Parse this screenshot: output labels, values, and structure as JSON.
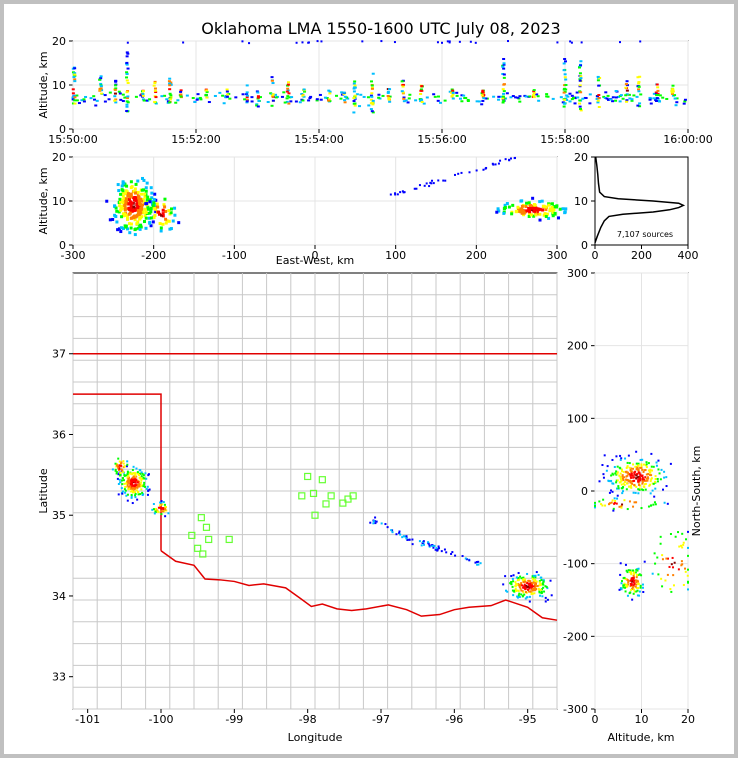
{
  "chart_data": {
    "title": "Oklahoma LMA 1550-1600 UTC July 08, 2023",
    "colors": [
      "#0000ff",
      "#00bfff",
      "#00ff00",
      "#ffff00",
      "#ff8000",
      "#ff0000",
      "#8b0000"
    ],
    "time_height": {
      "type": "scatter",
      "ylabel": "Altitude, km",
      "xlim": [
        "15:50:00",
        "16:00:00"
      ],
      "ylim": [
        0,
        20
      ],
      "xticks": [
        "15:50:00",
        "15:52:00",
        "15:54:00",
        "15:56:00",
        "15:58:00",
        "16:00:00"
      ],
      "yticks": [
        0,
        10,
        20
      ],
      "flashes": [
        {
          "t": "15:50:01",
          "alt": [
            5,
            15
          ],
          "n": 18
        },
        {
          "t": "15:50:27",
          "alt": [
            6,
            12
          ],
          "n": 14
        },
        {
          "t": "15:50:41",
          "alt": [
            6,
            11
          ],
          "n": 12
        },
        {
          "t": "15:50:53",
          "alt": [
            4,
            18
          ],
          "n": 24
        },
        {
          "t": "15:51:08",
          "alt": [
            7,
            9
          ],
          "n": 8
        },
        {
          "t": "15:51:20",
          "alt": [
            6,
            11
          ],
          "n": 10
        },
        {
          "t": "15:51:35",
          "alt": [
            6,
            12
          ],
          "n": 14
        },
        {
          "t": "15:51:45",
          "alt": [
            7,
            9
          ],
          "n": 8
        },
        {
          "t": "15:52:10",
          "alt": [
            7,
            9
          ],
          "n": 8
        },
        {
          "t": "15:52:30",
          "alt": [
            7,
            9
          ],
          "n": 6
        },
        {
          "t": "15:52:50",
          "alt": [
            6,
            10
          ],
          "n": 8
        },
        {
          "t": "15:53:00",
          "alt": [
            5,
            9
          ],
          "n": 8
        },
        {
          "t": "15:53:15",
          "alt": [
            5,
            12
          ],
          "n": 12
        },
        {
          "t": "15:53:30",
          "alt": [
            5,
            11
          ],
          "n": 10
        },
        {
          "t": "15:53:45",
          "alt": [
            7,
            9
          ],
          "n": 8
        },
        {
          "t": "15:54:10",
          "alt": [
            6,
            9
          ],
          "n": 8
        },
        {
          "t": "15:54:25",
          "alt": [
            6,
            9
          ],
          "n": 8
        },
        {
          "t": "15:54:35",
          "alt": [
            3,
            11
          ],
          "n": 16
        },
        {
          "t": "15:54:52",
          "alt": [
            3,
            13
          ],
          "n": 18
        },
        {
          "t": "15:55:08",
          "alt": [
            6,
            10
          ],
          "n": 10
        },
        {
          "t": "15:55:22",
          "alt": [
            6,
            11
          ],
          "n": 10
        },
        {
          "t": "15:55:40",
          "alt": [
            6,
            10
          ],
          "n": 10
        },
        {
          "t": "15:56:10",
          "alt": [
            7,
            9
          ],
          "n": 8
        },
        {
          "t": "15:56:40",
          "alt": [
            7,
            9
          ],
          "n": 8
        },
        {
          "t": "15:57:00",
          "alt": [
            6,
            16
          ],
          "n": 18
        },
        {
          "t": "15:57:30",
          "alt": [
            7,
            9
          ],
          "n": 6
        },
        {
          "t": "15:58:00",
          "alt": [
            5,
            16
          ],
          "n": 20
        },
        {
          "t": "15:58:15",
          "alt": [
            4,
            18
          ],
          "n": 22
        },
        {
          "t": "15:58:33",
          "alt": [
            5,
            12
          ],
          "n": 10
        },
        {
          "t": "15:59:00",
          "alt": [
            6,
            11
          ],
          "n": 12
        },
        {
          "t": "15:59:12",
          "alt": [
            5,
            12
          ],
          "n": 12
        },
        {
          "t": "15:59:30",
          "alt": [
            6,
            11
          ],
          "n": 12
        },
        {
          "t": "15:59:45",
          "alt": [
            7,
            10
          ],
          "n": 8
        }
      ]
    },
    "ew_altitude": {
      "type": "scatter",
      "xlabel": "East-West, km",
      "ylabel": "Altitude, km",
      "xlim": [
        -300,
        300
      ],
      "ylim": [
        0,
        20
      ],
      "xticks": [
        -300,
        -200,
        -100,
        0,
        100,
        200,
        300
      ],
      "yticks": [
        0,
        10,
        20
      ],
      "clusters": [
        {
          "x": -225,
          "y": 9,
          "sx": 12,
          "sy": 3,
          "n": 240
        },
        {
          "x": -190,
          "y": 7,
          "sx": 8,
          "sy": 2,
          "n": 50
        },
        {
          "x": 270,
          "y": 8,
          "sx": 20,
          "sy": 1,
          "n": 120
        }
      ],
      "streak": {
        "x0": 90,
        "y0": 11,
        "x1": 250,
        "y1": 20
      }
    },
    "histogram": {
      "type": "line",
      "annotation": "7,107 sources",
      "xlim": [
        0,
        400
      ],
      "ylim": [
        0,
        20
      ],
      "xticks": [
        0,
        200,
        400
      ],
      "yticks": [
        0,
        10,
        20
      ],
      "profile": [
        [
          0,
          0.5
        ],
        [
          10,
          2
        ],
        [
          25,
          4
        ],
        [
          40,
          5.5
        ],
        [
          60,
          6.5
        ],
        [
          120,
          7
        ],
        [
          250,
          7.5
        ],
        [
          320,
          8
        ],
        [
          360,
          8.5
        ],
        [
          380,
          9
        ],
        [
          360,
          9.5
        ],
        [
          250,
          10
        ],
        [
          100,
          10.5
        ],
        [
          40,
          11
        ],
        [
          20,
          12
        ],
        [
          15,
          14
        ],
        [
          12,
          16
        ],
        [
          8,
          18
        ],
        [
          3,
          20
        ]
      ]
    },
    "plan_view": {
      "type": "scatter",
      "xlabel": "Longitude",
      "ylabel": "Latitude",
      "xlim": [
        -101.2,
        -94.6
      ],
      "ylim": [
        32.6,
        38.0
      ],
      "xticks": [
        -101,
        -100,
        -99,
        -98,
        -97,
        -96,
        -95
      ],
      "yticks": [
        33,
        34,
        35,
        36,
        37
      ],
      "state_border_north_lat": 37.0,
      "panhandle_south_lat": 36.5,
      "panhandle_east_lon": -100.0,
      "red_river": [
        [
          -100.0,
          34.56
        ],
        [
          -99.8,
          34.43
        ],
        [
          -99.55,
          34.38
        ],
        [
          -99.4,
          34.21
        ],
        [
          -99.2,
          34.2
        ],
        [
          -99.0,
          34.18
        ],
        [
          -98.8,
          34.13
        ],
        [
          -98.6,
          34.15
        ],
        [
          -98.3,
          34.1
        ],
        [
          -98.1,
          33.97
        ],
        [
          -97.95,
          33.87
        ],
        [
          -97.8,
          33.9
        ],
        [
          -97.6,
          33.84
        ],
        [
          -97.4,
          33.82
        ],
        [
          -97.2,
          33.84
        ],
        [
          -96.9,
          33.89
        ],
        [
          -96.65,
          33.83
        ],
        [
          -96.45,
          33.75
        ],
        [
          -96.2,
          33.77
        ],
        [
          -96.0,
          33.83
        ],
        [
          -95.8,
          33.86
        ],
        [
          -95.5,
          33.88
        ],
        [
          -95.3,
          33.95
        ],
        [
          -95.0,
          33.86
        ],
        [
          -94.8,
          33.73
        ],
        [
          -94.6,
          33.7
        ]
      ],
      "network_stations": [
        {
          "lon": -99.45,
          "lat": 34.97
        },
        {
          "lon": -99.38,
          "lat": 34.85
        },
        {
          "lon": -99.58,
          "lat": 34.75
        },
        {
          "lon": -99.35,
          "lat": 34.7
        },
        {
          "lon": -99.5,
          "lat": 34.59
        },
        {
          "lon": -99.43,
          "lat": 34.52
        },
        {
          "lon": -99.07,
          "lat": 34.7
        },
        {
          "lon": -98.0,
          "lat": 35.48
        },
        {
          "lon": -97.8,
          "lat": 35.44
        },
        {
          "lon": -98.08,
          "lat": 35.24
        },
        {
          "lon": -97.92,
          "lat": 35.27
        },
        {
          "lon": -97.75,
          "lat": 35.14
        },
        {
          "lon": -97.68,
          "lat": 35.24
        },
        {
          "lon": -97.52,
          "lat": 35.15
        },
        {
          "lon": -97.45,
          "lat": 35.2
        },
        {
          "lon": -97.38,
          "lat": 35.24
        },
        {
          "lon": -97.9,
          "lat": 35.0
        }
      ],
      "source_clusters": [
        {
          "lon": -100.37,
          "lat": 35.4,
          "slon": 0.09,
          "slat": 0.09,
          "n": 220
        },
        {
          "lon": -100.55,
          "lat": 35.6,
          "slon": 0.05,
          "slat": 0.06,
          "n": 40
        },
        {
          "lon": -100.0,
          "lat": 35.08,
          "slon": 0.06,
          "slat": 0.04,
          "n": 40
        },
        {
          "lon": -95.0,
          "lat": 34.12,
          "slon": 0.14,
          "slat": 0.07,
          "n": 200
        }
      ],
      "source_streak": [
        [
          -97.2,
          34.98
        ],
        [
          -96.6,
          34.7
        ],
        [
          -96.1,
          34.55
        ],
        [
          -95.6,
          34.38
        ]
      ]
    },
    "altitude_ns": {
      "type": "scatter",
      "xlabel": "Altitude, km",
      "ylabel": "North-South, km",
      "xlim": [
        0,
        20
      ],
      "ylim": [
        -300,
        300
      ],
      "xticks": [
        0,
        10,
        20
      ],
      "yticks": [
        -300,
        -200,
        -100,
        0,
        100,
        200,
        300
      ],
      "clusters": [
        {
          "x": 9,
          "y": 20,
          "sx": 3,
          "sy": 12,
          "n": 260
        },
        {
          "x": 6,
          "y": -18,
          "sx": 4,
          "sy": 4,
          "n": 40
        },
        {
          "x": 8,
          "y": -125,
          "sx": 1.2,
          "sy": 10,
          "n": 110
        },
        {
          "x": 17,
          "y": -100,
          "sx": 2.5,
          "sy": 25,
          "n": 50
        }
      ]
    }
  }
}
